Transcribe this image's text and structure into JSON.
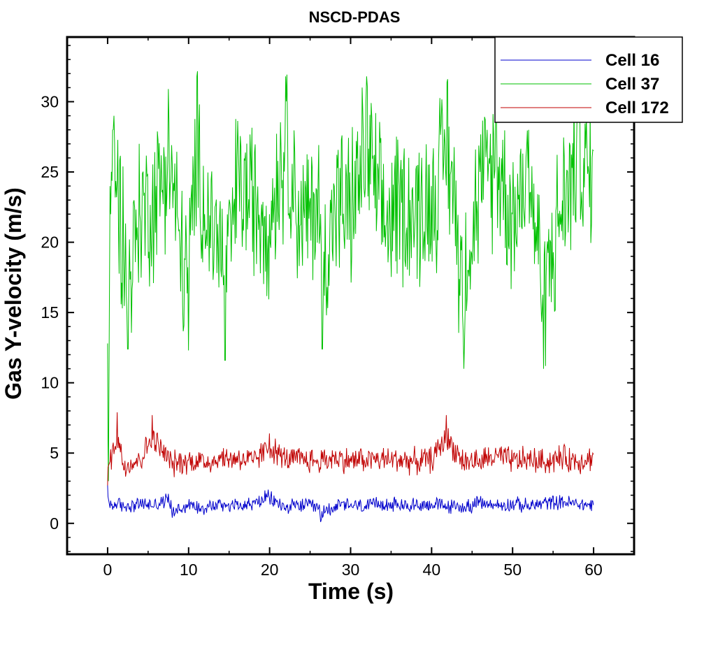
{
  "chart_data": {
    "type": "line",
    "title": "NSCD-PDAS",
    "xlabel": "Time (s)",
    "ylabel": "Gas Y-velocity (m/s)",
    "xlim": [
      -5,
      65
    ],
    "ylim": [
      -2.2,
      34.6
    ],
    "xticks": [
      0,
      10,
      20,
      30,
      40,
      50,
      60
    ],
    "yticks": [
      0,
      5,
      10,
      15,
      20,
      25,
      30
    ],
    "grid": false,
    "legend_position": "top-right",
    "series": [
      {
        "name": "Cell 16",
        "color": "#0000cc",
        "mean": 1.3,
        "amp": 0.45,
        "x": [
          0,
          0.05,
          0.3,
          1,
          2,
          4,
          6,
          7.5,
          8,
          10,
          12,
          14,
          16,
          18,
          19.8,
          22,
          24,
          26,
          26.3,
          28,
          30,
          32,
          34,
          36,
          38,
          40,
          42,
          44,
          46,
          48,
          50,
          52,
          54,
          56,
          58,
          60
        ],
        "y": [
          2.7,
          1.9,
          1.1,
          1.4,
          1.2,
          1.4,
          1.3,
          2.1,
          0.4,
          1.3,
          1.0,
          1.4,
          1.3,
          1.5,
          2.4,
          0.9,
          1.3,
          1.0,
          0.1,
          1.2,
          1.3,
          1.0,
          1.6,
          1.2,
          1.3,
          1.4,
          1.1,
          1.0,
          1.6,
          1.2,
          1.5,
          1.1,
          1.6,
          1.8,
          1.4,
          1.3
        ]
      },
      {
        "name": "Cell 37",
        "color": "#00c000",
        "mean": 22.0,
        "amp": 4.8,
        "x": [
          0,
          0.05,
          0.1,
          0.3,
          0.8,
          2,
          2.5,
          4,
          6,
          7.5,
          9,
          10,
          11,
          12,
          14,
          14.5,
          16,
          18,
          20,
          22,
          24,
          26,
          26.5,
          28,
          30,
          32,
          34,
          36,
          38,
          40,
          42,
          44,
          44.5,
          46,
          48,
          50,
          52,
          53.8,
          56,
          58,
          60
        ],
        "y": [
          12.8,
          5.6,
          3.0,
          24.0,
          29.0,
          19.0,
          12.4,
          22.0,
          24.0,
          30.9,
          16.5,
          12.3,
          31.8,
          22.0,
          18.0,
          11.6,
          26.0,
          24.0,
          22.0,
          31.8,
          20.0,
          24.0,
          12.4,
          24.0,
          22.0,
          31.8,
          20.0,
          24.0,
          22.0,
          24.0,
          31.6,
          11.0,
          18.0,
          25.0,
          30.0,
          22.0,
          28.0,
          11.0,
          22.0,
          30.0,
          26.5
        ]
      },
      {
        "name": "Cell 172",
        "color": "#c00000",
        "mean": 4.5,
        "amp": 0.8,
        "x": [
          0,
          0.05,
          0.3,
          1.2,
          2,
          4,
          5.5,
          8,
          10,
          12,
          14,
          16,
          18,
          20,
          22,
          24,
          26,
          28,
          30,
          32,
          34,
          36,
          38,
          40,
          41.8,
          44,
          46,
          48,
          50,
          52,
          54,
          56,
          58,
          60
        ],
        "y": [
          2.7,
          4.0,
          4.4,
          7.9,
          3.8,
          4.5,
          7.7,
          3.9,
          4.5,
          4.3,
          4.6,
          4.8,
          4.3,
          6.4,
          4.5,
          4.6,
          4.4,
          4.8,
          4.4,
          4.7,
          4.5,
          4.6,
          4.3,
          4.6,
          7.7,
          4.2,
          4.5,
          5.0,
          4.4,
          4.6,
          4.2,
          4.8,
          4.4,
          4.9
        ]
      }
    ]
  }
}
